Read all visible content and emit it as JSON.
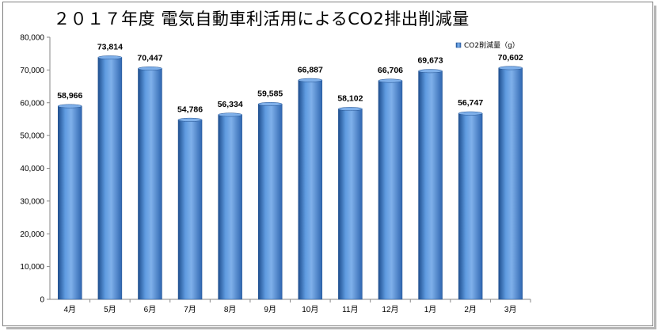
{
  "chart_data": {
    "type": "bar",
    "title": "２０１７年度 電気自動車利活用によるCO2排出削減量",
    "categories": [
      "4月",
      "5月",
      "6月",
      "7月",
      "8月",
      "9月",
      "10月",
      "11月",
      "12月",
      "1月",
      "2月",
      "3月"
    ],
    "series": [
      {
        "name": "CO2削減量（g）",
        "values": [
          58966,
          73814,
          70447,
          54786,
          56334,
          59585,
          66887,
          58102,
          66706,
          69673,
          56747,
          70602
        ],
        "labels": [
          "58,966",
          "73,814",
          "70,447",
          "54,786",
          "56,334",
          "59,585",
          "66,887",
          "58,102",
          "66,706",
          "69,673",
          "56,747",
          "70,602"
        ]
      }
    ],
    "ylim": [
      0,
      80000
    ],
    "yticks": [
      "0",
      "10,000",
      "20,000",
      "30,000",
      "40,000",
      "50,000",
      "60,000",
      "70,000",
      "80,000"
    ],
    "xlabel": "",
    "ylabel": "",
    "grid": false,
    "legend": "top-right",
    "colors": {
      "bar": "#3f7fcf",
      "bar_dark": "#1f4f8f",
      "bar_light": "#7fb0ea",
      "axis": "#868686"
    }
  }
}
